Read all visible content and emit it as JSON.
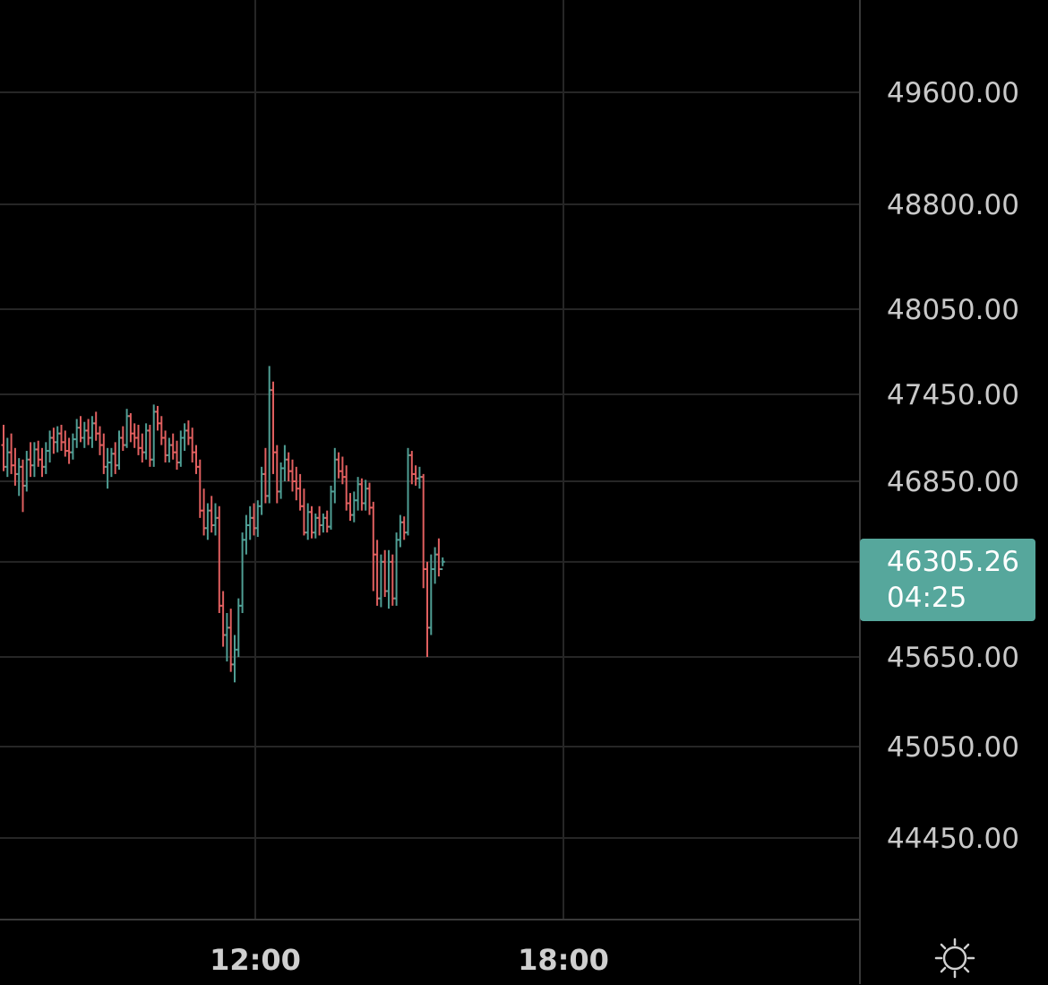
{
  "chart_data": {
    "type": "ohlc",
    "price_axis": {
      "tick_labels": [
        "49600.00",
        "48800.00",
        "48050.00",
        "47450.00",
        "46850.00",
        "45650.00",
        "45050.00",
        "44450.00"
      ],
      "tick_values": [
        49600,
        48800,
        48050,
        47450,
        46850,
        45650,
        45050,
        44450
      ],
      "unlabeled_gridline_values": [
        46300
      ]
    },
    "time_axis": {
      "tick_labels": [
        "12:00",
        "18:00"
      ]
    },
    "last_price": {
      "value": "46305.26",
      "countdown": "04:25"
    },
    "colors": {
      "up": "#4f9e94",
      "down": "#e05f5f",
      "background": "#000000",
      "grid": "#262626",
      "last_price_bg": "#56a79c"
    },
    "series": [
      [
        47100,
        47240,
        46920,
        46950
      ],
      [
        46950,
        47150,
        46880,
        47050
      ],
      [
        47050,
        47180,
        46900,
        46960
      ],
      [
        46960,
        47080,
        46820,
        46900
      ],
      [
        46900,
        47010,
        46750,
        46950
      ],
      [
        46950,
        47000,
        46640,
        46820
      ],
      [
        46820,
        47060,
        46780,
        47000
      ],
      [
        47000,
        47120,
        46880,
        46960
      ],
      [
        46960,
        47120,
        46880,
        47070
      ],
      [
        47070,
        47130,
        46950,
        47000
      ],
      [
        47000,
        47080,
        46880,
        46950
      ],
      [
        46950,
        47120,
        46900,
        47060
      ],
      [
        47060,
        47200,
        46980,
        47150
      ],
      [
        47150,
        47220,
        47040,
        47120
      ],
      [
        47120,
        47230,
        47050,
        47180
      ],
      [
        47180,
        47240,
        47060,
        47120
      ],
      [
        47120,
        47200,
        47020,
        47060
      ],
      [
        47060,
        47150,
        46970,
        47050
      ],
      [
        47050,
        47180,
        47000,
        47140
      ],
      [
        47140,
        47280,
        47080,
        47220
      ],
      [
        47220,
        47300,
        47120,
        47150
      ],
      [
        47150,
        47260,
        47080,
        47200
      ],
      [
        47200,
        47280,
        47100,
        47150
      ],
      [
        47150,
        47300,
        47080,
        47250
      ],
      [
        47250,
        47330,
        47130,
        47180
      ],
      [
        47180,
        47230,
        47030,
        47100
      ],
      [
        47100,
        47180,
        46900,
        46950
      ],
      [
        46950,
        47080,
        46800,
        46980
      ],
      [
        46980,
        47080,
        46880,
        47040
      ],
      [
        47040,
        47120,
        46900,
        46960
      ],
      [
        46960,
        47200,
        46930,
        47150
      ],
      [
        47150,
        47230,
        47060,
        47100
      ],
      [
        47100,
        47350,
        47080,
        47300
      ],
      [
        47300,
        47320,
        47120,
        47180
      ],
      [
        47180,
        47250,
        47080,
        47150
      ],
      [
        47150,
        47240,
        47030,
        47080
      ],
      [
        47080,
        47180,
        46980,
        47050
      ],
      [
        47050,
        47250,
        47000,
        47200
      ],
      [
        47200,
        47240,
        46950,
        47000
      ],
      [
        47000,
        47380,
        46950,
        47330
      ],
      [
        47330,
        47370,
        47200,
        47250
      ],
      [
        47250,
        47300,
        47100,
        47150
      ],
      [
        47150,
        47200,
        46980,
        47030
      ],
      [
        47030,
        47150,
        46980,
        47100
      ],
      [
        47100,
        47180,
        47000,
        47050
      ],
      [
        47050,
        47130,
        46930,
        46980
      ],
      [
        46980,
        47200,
        46950,
        47150
      ],
      [
        47150,
        47250,
        47060,
        47200
      ],
      [
        47200,
        47270,
        47100,
        47150
      ],
      [
        47150,
        47220,
        46980,
        47050
      ],
      [
        47050,
        47100,
        46900,
        46950
      ],
      [
        46950,
        47000,
        46600,
        46650
      ],
      [
        46650,
        46800,
        46480,
        46530
      ],
      [
        46530,
        46700,
        46450,
        46650
      ],
      [
        46650,
        46750,
        46500,
        46550
      ],
      [
        46550,
        46700,
        46480,
        46600
      ],
      [
        46600,
        46680,
        45950,
        46000
      ],
      [
        46000,
        46100,
        45720,
        45800
      ],
      [
        45800,
        45950,
        45620,
        45850
      ],
      [
        45850,
        45980,
        45550,
        45600
      ],
      [
        45600,
        45800,
        45480,
        45700
      ],
      [
        45700,
        46050,
        45650,
        46000
      ],
      [
        46000,
        46500,
        45950,
        46450
      ],
      [
        46450,
        46620,
        46350,
        46550
      ],
      [
        46550,
        46680,
        46450,
        46600
      ],
      [
        46600,
        46700,
        46480,
        46530
      ],
      [
        46530,
        46720,
        46470,
        46680
      ],
      [
        46680,
        46950,
        46620,
        46900
      ],
      [
        46900,
        47080,
        46700,
        46750
      ],
      [
        46750,
        47650,
        46700,
        47480
      ],
      [
        47480,
        47540,
        46900,
        47050
      ],
      [
        47050,
        47100,
        46700,
        46780
      ],
      [
        46780,
        46980,
        46730,
        46940
      ],
      [
        46940,
        47100,
        46850,
        47000
      ],
      [
        47000,
        47050,
        46850,
        46920
      ],
      [
        46920,
        47000,
        46780,
        46850
      ],
      [
        46850,
        46950,
        46720,
        46800
      ],
      [
        46800,
        46900,
        46650,
        46680
      ],
      [
        46680,
        46800,
        46480,
        46500
      ],
      [
        46500,
        46700,
        46450,
        46640
      ],
      [
        46640,
        46680,
        46460,
        46500
      ],
      [
        46500,
        46630,
        46460,
        46600
      ],
      [
        46600,
        46680,
        46480,
        46550
      ],
      [
        46550,
        46630,
        46500,
        46600
      ],
      [
        46600,
        46650,
        46500,
        46540
      ],
      [
        46540,
        46820,
        46520,
        46780
      ],
      [
        46780,
        47080,
        46700,
        47000
      ],
      [
        47000,
        47050,
        46870,
        46920
      ],
      [
        46920,
        47020,
        46830,
        46880
      ],
      [
        46880,
        46960,
        46650,
        46700
      ],
      [
        46700,
        46770,
        46580,
        46620
      ],
      [
        46620,
        46780,
        46570,
        46720
      ],
      [
        46720,
        46880,
        46650,
        46830
      ],
      [
        46830,
        46870,
        46650,
        46700
      ],
      [
        46700,
        46860,
        46650,
        46800
      ],
      [
        46800,
        46840,
        46620,
        46670
      ],
      [
        46670,
        46710,
        46100,
        46350
      ],
      [
        46350,
        46450,
        46000,
        46050
      ],
      [
        46050,
        46350,
        45990,
        46300
      ],
      [
        46300,
        46380,
        46060,
        46100
      ],
      [
        46100,
        46380,
        45980,
        46300
      ],
      [
        46300,
        46350,
        46000,
        46050
      ],
      [
        46050,
        46500,
        46000,
        46450
      ],
      [
        46450,
        46620,
        46400,
        46570
      ],
      [
        46570,
        46610,
        46450,
        46500
      ],
      [
        46500,
        47080,
        46480,
        47030
      ],
      [
        47030,
        47060,
        46830,
        46900
      ],
      [
        46900,
        46960,
        46820,
        46870
      ],
      [
        46870,
        46950,
        46800,
        46880
      ],
      [
        46880,
        46900,
        46120,
        46250
      ],
      [
        46250,
        46300,
        45650,
        45850
      ],
      [
        45850,
        46350,
        45800,
        46250
      ],
      [
        46250,
        46400,
        46150,
        46350
      ],
      [
        46350,
        46460,
        46200,
        46250
      ],
      [
        46250,
        46330,
        46270,
        46300
      ]
    ]
  }
}
